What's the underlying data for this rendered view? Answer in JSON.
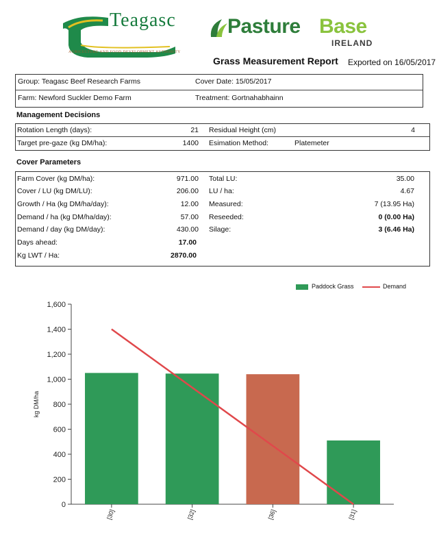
{
  "header": {
    "teagasc_word": "Teagasc",
    "teagasc_tagline": "AGRICULTURE AND FOOD DEVELOPMENT AUTHORITY",
    "pasturebase_part1": "Pasture",
    "pasturebase_part2": "Base",
    "pasturebase_country": "IRELAND",
    "report_title": "Grass Measurement Report",
    "exported": "Exported on 16/05/2017"
  },
  "info": {
    "group": "Group: Teagasc Beef Research Farms",
    "cover_date": "Cover Date: 15/05/2017",
    "farm": "Farm: Newford Suckler Demo Farm",
    "treatment": "Treatment: Gortnahabhainn"
  },
  "management": {
    "heading": "Management Decisions",
    "rotation_label": "Rotation Length (days):",
    "rotation_value": "21",
    "residual_label": "Residual Height (cm)",
    "residual_value": "4",
    "target_label": "Target pre-gaze (kg DM/ha):",
    "target_value": "1400",
    "method_label": "Esimation Method:",
    "method_value": "Platemeter"
  },
  "cover": {
    "heading": "Cover Parameters",
    "left": [
      {
        "label": "Farm Cover (kg DM/ha):",
        "value": "971.00"
      },
      {
        "label": "Cover / LU (kg DM/LU):",
        "value": "206.00"
      },
      {
        "label": "Growth / Ha (kg DM/ha/day):",
        "value": "12.00"
      },
      {
        "label": "Demand / ha (kg DM/ha/day):",
        "value": "57.00"
      },
      {
        "label": "Demand / day (kg DM/day):",
        "value": "430.00"
      },
      {
        "label": "Days ahead:",
        "value": "17.00"
      },
      {
        "label": "Kg LWT / Ha:",
        "value": "2870.00"
      }
    ],
    "right": [
      {
        "label": "Total LU:",
        "value": "35.00"
      },
      {
        "label": "LU / ha:",
        "value": "4.67"
      },
      {
        "label": "Measured:",
        "value": "7 (13.95 Ha)"
      },
      {
        "label": "Reseeded:",
        "value": "0 (0.00 Ha)"
      },
      {
        "label": "Silage:",
        "value": "3 (6.46 Ha)"
      }
    ]
  },
  "legend": {
    "bars": "Paddock Grass",
    "line": "Demand"
  },
  "colors": {
    "grass": "#2f9a58",
    "silage": "#c8694f",
    "demand": "#e0484b"
  },
  "chart_data": {
    "type": "bar",
    "ylabel": "kg DM/ha",
    "ylim": [
      0,
      1600
    ],
    "yticks": [
      "0",
      "200",
      "400",
      "600",
      "800",
      "1,000",
      "1,200",
      "1,400",
      "1,600"
    ],
    "categories": [
      "[30]",
      "[32]",
      "[36]",
      "[31]"
    ],
    "series": [
      {
        "name": "Paddock Grass",
        "values": [
          1050,
          1045,
          1040,
          510
        ],
        "colors": [
          "#2f9a58",
          "#2f9a58",
          "#c8694f",
          "#2f9a58"
        ]
      }
    ],
    "demand_line": {
      "name": "Demand",
      "from": {
        "category": "[30]",
        "value": 1400
      },
      "to": {
        "category": "[31]",
        "value": 0
      }
    }
  }
}
